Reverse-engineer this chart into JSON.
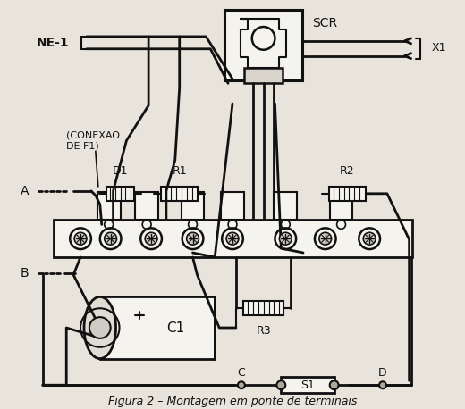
{
  "title": "Figura 2 – Montagem em ponte de terminais",
  "bg_color": "#e8e4dc",
  "line_color": "#111111",
  "fig_width": 5.2,
  "fig_height": 4.58,
  "dpi": 100,
  "labels": {
    "NE1": "NE-1",
    "SCR": "SCR",
    "D1": "D1",
    "R1": "R1",
    "R2": "R2",
    "R3": "R3",
    "C1": "C1",
    "S1": "S1",
    "A": "A",
    "B": "B",
    "C": "C",
    "D": "D",
    "X1": "X1",
    "conexao": "(CONEXAO\nDE F1)"
  }
}
